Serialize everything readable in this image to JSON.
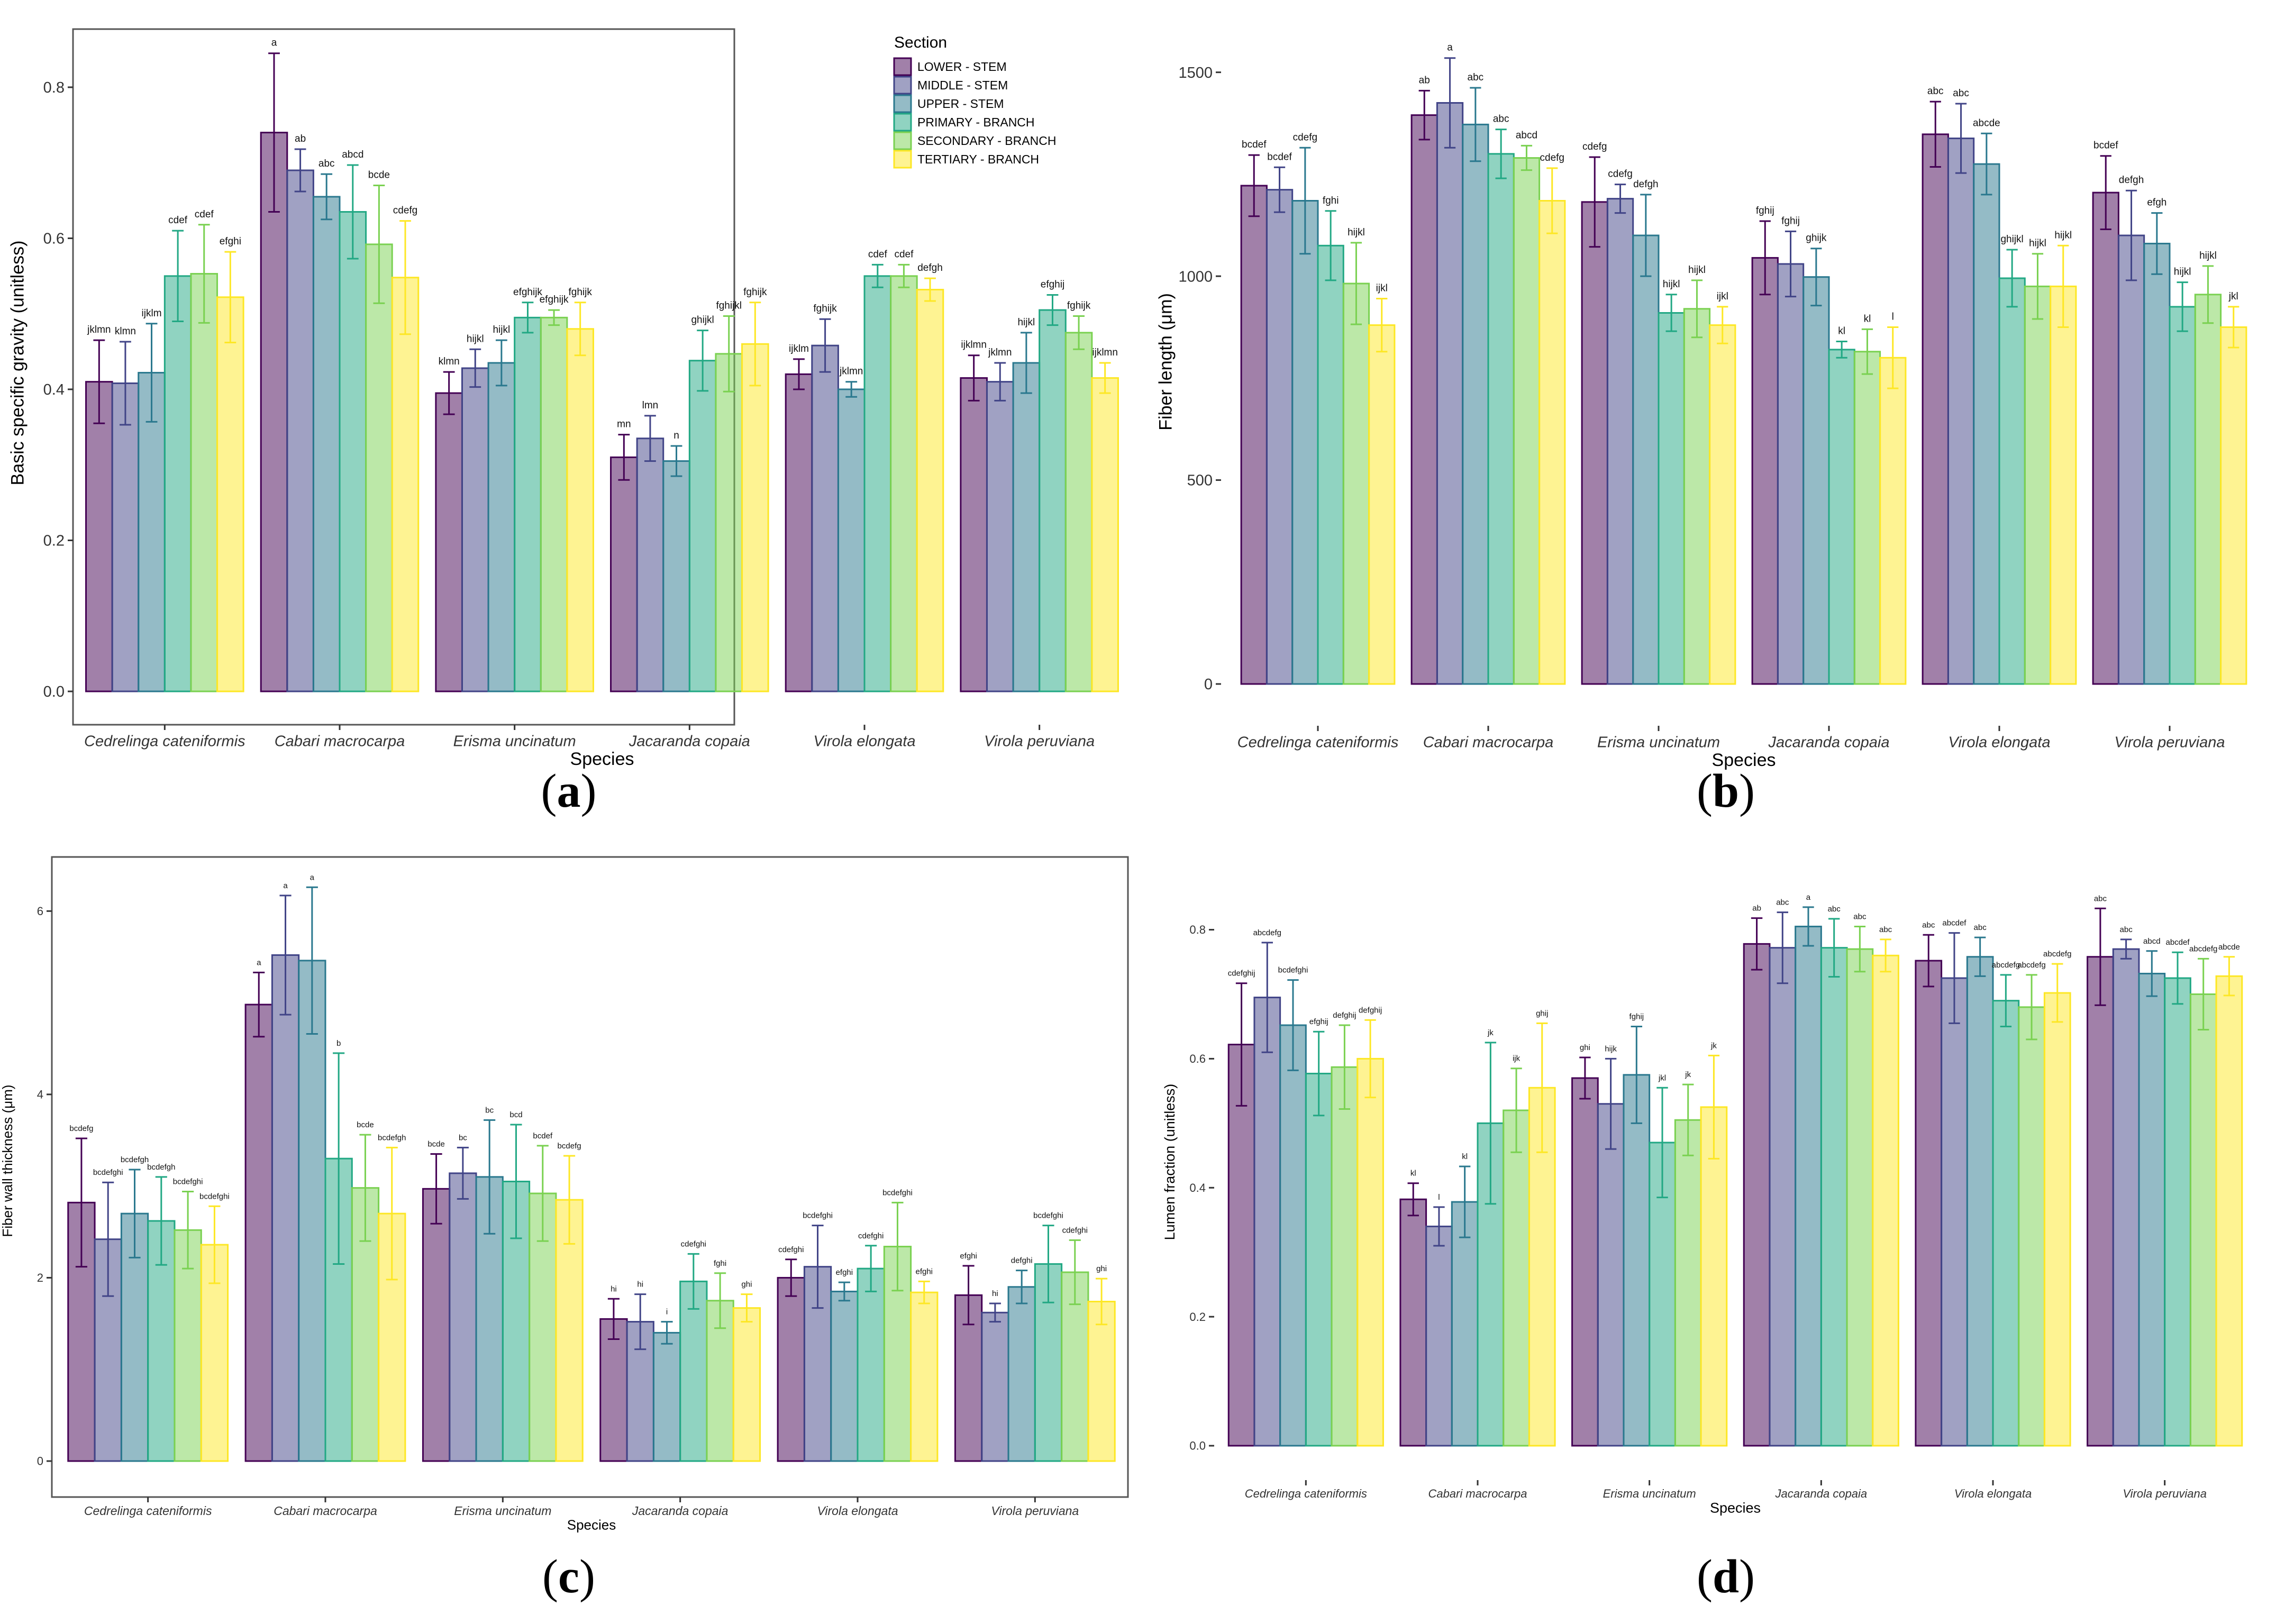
{
  "colors": {
    "LOWER - STEM": "#440154",
    "MIDDLE - STEM": "#414487",
    "UPPER - STEM": "#2a788e",
    "PRIMARY - BRANCH": "#22a884",
    "SECONDARY - BRANCH": "#7ad151",
    "TERTIARY - BRANCH": "#fde725"
  },
  "chart_data": [
    {
      "type": "bar",
      "panel_label": "a",
      "xlabel": "Species",
      "ylabel": "Basic specific gravity (unitless)",
      "ylim": [
        0,
        0.87
      ],
      "yticks": [
        "0.0",
        "0.2",
        "0.4",
        "0.6",
        "0.8"
      ],
      "categories": [
        "Cedrelinga cateniformis",
        "Cabari macrocarpa",
        "Erisma uncinatum",
        "Jacaranda copaia",
        "Virola elongata",
        "Virola peruviana"
      ],
      "legend": {
        "title": "Section",
        "position": "top-right",
        "entries": [
          "LOWER - STEM",
          "MIDDLE - STEM",
          "UPPER - STEM",
          "PRIMARY - BRANCH",
          "SECONDARY - BRANCH",
          "TERTIARY - BRANCH"
        ]
      },
      "series": [
        {
          "name": "LOWER - STEM",
          "values": [
            0.41,
            0.74,
            0.395,
            0.31,
            0.42,
            0.415
          ],
          "errors": [
            0.055,
            0.105,
            0.028,
            0.03,
            0.02,
            0.03
          ],
          "letters": [
            "jklmn",
            "a",
            "klmn",
            "mn",
            "ijklm",
            "ijklmn"
          ]
        },
        {
          "name": "MIDDLE - STEM",
          "values": [
            0.408,
            0.69,
            0.428,
            0.335,
            0.458,
            0.41
          ],
          "errors": [
            0.055,
            0.028,
            0.025,
            0.03,
            0.035,
            0.025
          ],
          "letters": [
            "klmn",
            "ab",
            "hijkl",
            "lmn",
            "fghijk",
            "jklmn"
          ]
        },
        {
          "name": "UPPER - STEM",
          "values": [
            0.422,
            0.655,
            0.435,
            0.305,
            0.4,
            0.435
          ],
          "errors": [
            0.065,
            0.03,
            0.03,
            0.02,
            0.01,
            0.04
          ],
          "letters": [
            "ijklm",
            "abc",
            "hijkl",
            "n",
            "jklmn",
            "hijkl"
          ]
        },
        {
          "name": "PRIMARY - BRANCH",
          "values": [
            0.55,
            0.635,
            0.495,
            0.438,
            0.55,
            0.505
          ],
          "errors": [
            0.06,
            0.062,
            0.02,
            0.04,
            0.015,
            0.02
          ],
          "letters": [
            "cdef",
            "abcd",
            "efghijk",
            "ghijkl",
            "cdef",
            "efghij"
          ]
        },
        {
          "name": "SECONDARY - BRANCH",
          "values": [
            0.553,
            0.592,
            0.495,
            0.447,
            0.55,
            0.475
          ],
          "errors": [
            0.065,
            0.078,
            0.01,
            0.05,
            0.015,
            0.022
          ],
          "letters": [
            "cdef",
            "bcde",
            "efghijk",
            "fghijkl",
            "cdef",
            "fghijk"
          ]
        },
        {
          "name": "TERTIARY - BRANCH",
          "values": [
            0.522,
            0.548,
            0.48,
            0.46,
            0.532,
            0.415
          ],
          "errors": [
            0.06,
            0.075,
            0.035,
            0.055,
            0.015,
            0.02
          ],
          "letters": [
            "efghi",
            "cdefg",
            "fghijk",
            "fghijk",
            "defgh",
            "ijklmn"
          ]
        }
      ]
    },
    {
      "type": "bar",
      "panel_label": "b",
      "xlabel": "Species",
      "ylabel": "Fiber length (μm)",
      "ylim": [
        0,
        1580
      ],
      "yticks": [
        "0",
        "500",
        "1000",
        "1500"
      ],
      "categories": [
        "Cedrelinga cateniformis",
        "Cabari macrocarpa",
        "Erisma uncinatum",
        "Jacaranda copaia",
        "Virola elongata",
        "Virola peruviana"
      ],
      "series": [
        {
          "name": "LOWER - STEM",
          "values": [
            1222,
            1395,
            1182,
            1045,
            1348,
            1205
          ],
          "errors": [
            75,
            60,
            110,
            90,
            80,
            90
          ],
          "letters": [
            "bcdef",
            "ab",
            "cdefg",
            "fghij",
            "abc",
            "bcdef"
          ]
        },
        {
          "name": "MIDDLE - STEM",
          "values": [
            1212,
            1425,
            1190,
            1030,
            1338,
            1100
          ],
          "errors": [
            55,
            110,
            35,
            80,
            85,
            110
          ],
          "letters": [
            "bcdef",
            "a",
            "cdefg",
            "fghij",
            "abc",
            "defgh"
          ]
        },
        {
          "name": "UPPER - STEM",
          "values": [
            1185,
            1372,
            1100,
            998,
            1275,
            1080
          ],
          "errors": [
            130,
            90,
            100,
            70,
            75,
            75
          ],
          "letters": [
            "cdefg",
            "abc",
            "defgh",
            "ghijk",
            "abcde",
            "efgh"
          ]
        },
        {
          "name": "PRIMARY - BRANCH",
          "values": [
            1075,
            1300,
            910,
            820,
            995,
            925
          ],
          "errors": [
            85,
            60,
            45,
            20,
            70,
            60
          ],
          "letters": [
            "fghi",
            "abc",
            "hijkl",
            "kl",
            "ghijkl",
            "hijkl"
          ]
        },
        {
          "name": "SECONDARY - BRANCH",
          "values": [
            982,
            1290,
            920,
            815,
            975,
            955
          ],
          "errors": [
            100,
            30,
            70,
            55,
            80,
            70
          ],
          "letters": [
            "hijkl",
            "abcd",
            "hijkl",
            "kl",
            "hijkl",
            "hijkl"
          ]
        },
        {
          "name": "TERTIARY - BRANCH",
          "values": [
            880,
            1185,
            880,
            800,
            975,
            875
          ],
          "errors": [
            65,
            80,
            45,
            75,
            100,
            50
          ],
          "letters": [
            "ijkl",
            "cdefg",
            "ijkl",
            "l",
            "hijkl",
            "jkl"
          ]
        }
      ]
    },
    {
      "type": "bar",
      "panel_label": "c",
      "xlabel": "Species",
      "ylabel": "Fiber wall thickness (μm)",
      "ylim": [
        0,
        6.55
      ],
      "yticks": [
        "0",
        "2",
        "4",
        "6"
      ],
      "categories": [
        "Cedrelinga cateniformis",
        "Cabari macrocarpa",
        "Erisma uncinatum",
        "Jacaranda copaia",
        "Virola elongata",
        "Virola peruviana"
      ],
      "series": [
        {
          "name": "LOWER - STEM",
          "values": [
            2.82,
            4.98,
            2.97,
            1.55,
            2.0,
            1.81
          ],
          "errors": [
            0.7,
            0.35,
            0.38,
            0.22,
            0.2,
            0.32
          ],
          "letters": [
            "bcdefg",
            "a",
            "bcde",
            "hi",
            "cdefghi",
            "efghi"
          ]
        },
        {
          "name": "MIDDLE - STEM",
          "values": [
            2.42,
            5.52,
            3.14,
            1.52,
            2.12,
            1.62
          ],
          "errors": [
            0.62,
            0.65,
            0.28,
            0.3,
            0.45,
            0.1
          ],
          "letters": [
            "bcdefghi",
            "a",
            "bc",
            "hi",
            "bcdefghi",
            "hi"
          ]
        },
        {
          "name": "UPPER - STEM",
          "values": [
            2.7,
            5.46,
            3.1,
            1.4,
            1.85,
            1.9
          ],
          "errors": [
            0.48,
            0.8,
            0.62,
            0.12,
            0.1,
            0.18
          ],
          "letters": [
            "bcdefgh",
            "a",
            "bc",
            "i",
            "efghi",
            "defghi"
          ]
        },
        {
          "name": "PRIMARY - BRANCH",
          "values": [
            2.62,
            3.3,
            3.05,
            1.96,
            2.1,
            2.15
          ],
          "errors": [
            0.48,
            1.15,
            0.62,
            0.3,
            0.25,
            0.42
          ],
          "letters": [
            "bcdefgh",
            "b",
            "bcd",
            "cdefghi",
            "cdefghi",
            "bcdefghi"
          ]
        },
        {
          "name": "SECONDARY - BRANCH",
          "values": [
            2.52,
            2.98,
            2.92,
            1.75,
            2.34,
            2.06
          ],
          "errors": [
            0.42,
            0.58,
            0.52,
            0.3,
            0.48,
            0.35
          ],
          "letters": [
            "bcdefghi",
            "bcde",
            "bcdef",
            "fghi",
            "bcdefghi",
            "cdefghi"
          ]
        },
        {
          "name": "TERTIARY - BRANCH",
          "values": [
            2.36,
            2.7,
            2.85,
            1.67,
            1.84,
            1.74
          ],
          "errors": [
            0.42,
            0.72,
            0.48,
            0.15,
            0.12,
            0.25
          ],
          "letters": [
            "bcdefghi",
            "bcdefgh",
            "bcdefg",
            "ghi",
            "efghi",
            "ghi"
          ]
        }
      ]
    },
    {
      "type": "bar",
      "panel_label": "d",
      "xlabel": "Species",
      "ylabel": "Lumen fraction (unitless)",
      "ylim": [
        0,
        0.88
      ],
      "yticks": [
        "0.0",
        "0.2",
        "0.4",
        "0.6",
        "0.8"
      ],
      "categories": [
        "Cedrelinga cateniformis",
        "Cabari macrocarpa",
        "Erisma uncinatum",
        "Jacaranda copaia",
        "Virola elongata",
        "Virola peruviana"
      ],
      "series": [
        {
          "name": "LOWER - STEM",
          "values": [
            0.622,
            0.382,
            0.57,
            0.778,
            0.752,
            0.758
          ],
          "errors": [
            0.095,
            0.025,
            0.032,
            0.04,
            0.04,
            0.075
          ],
          "letters": [
            "cdefghij",
            "kl",
            "ghi",
            "ab",
            "abc",
            "abc"
          ]
        },
        {
          "name": "MIDDLE - STEM",
          "values": [
            0.695,
            0.34,
            0.53,
            0.772,
            0.725,
            0.77
          ],
          "errors": [
            0.085,
            0.03,
            0.07,
            0.055,
            0.07,
            0.015
          ],
          "letters": [
            "abcdefg",
            "l",
            "hijk",
            "abc",
            "abcdef",
            "abc"
          ]
        },
        {
          "name": "UPPER - STEM",
          "values": [
            0.652,
            0.378,
            0.575,
            0.805,
            0.758,
            0.732
          ],
          "errors": [
            0.07,
            0.055,
            0.075,
            0.03,
            0.03,
            0.035
          ],
          "letters": [
            "bcdefghi",
            "kl",
            "fghij",
            "a",
            "abc",
            "abcd"
          ]
        },
        {
          "name": "PRIMARY - BRANCH",
          "values": [
            0.577,
            0.5,
            0.47,
            0.772,
            0.69,
            0.725
          ],
          "errors": [
            0.065,
            0.125,
            0.085,
            0.045,
            0.04,
            0.04
          ],
          "letters": [
            "efghij",
            "jk",
            "jkl",
            "abc",
            "abcdefg",
            "abcdef"
          ]
        },
        {
          "name": "SECONDARY - BRANCH",
          "values": [
            0.587,
            0.52,
            0.505,
            0.77,
            0.68,
            0.7
          ],
          "errors": [
            0.065,
            0.065,
            0.055,
            0.035,
            0.05,
            0.055
          ],
          "letters": [
            "defghij",
            "ijk",
            "jk",
            "abc",
            "abcdefg",
            "abcdefg"
          ]
        },
        {
          "name": "TERTIARY - BRANCH",
          "values": [
            0.6,
            0.555,
            0.525,
            0.76,
            0.702,
            0.728
          ],
          "errors": [
            0.06,
            0.1,
            0.08,
            0.025,
            0.045,
            0.03
          ],
          "letters": [
            "defghij",
            "ghij",
            "jk",
            "abc",
            "abcdefg",
            "abcde"
          ]
        }
      ]
    }
  ]
}
